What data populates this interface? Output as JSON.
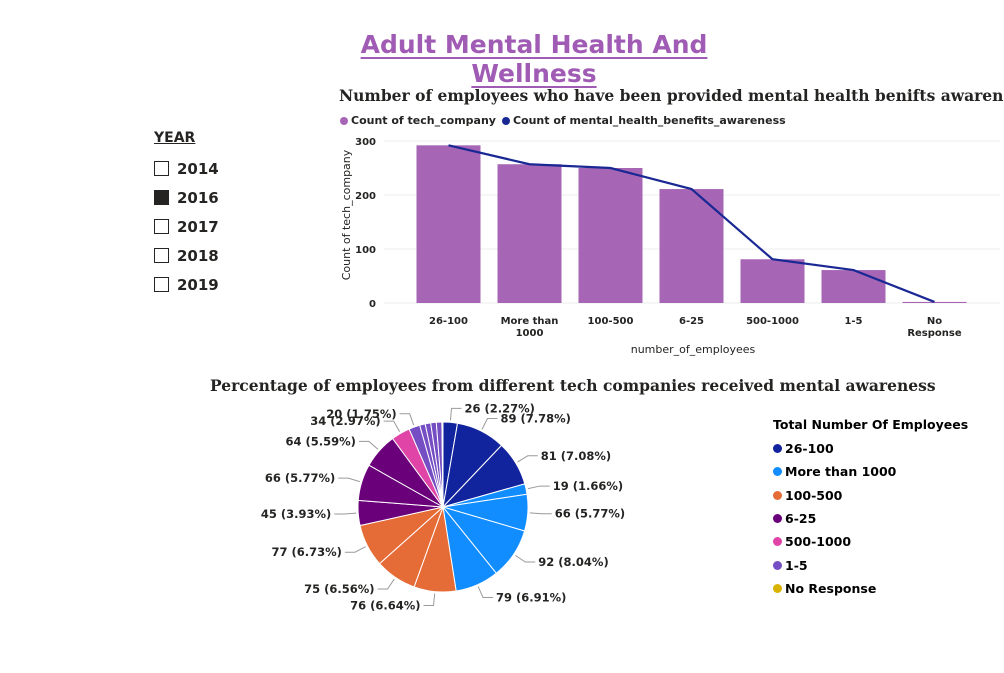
{
  "page_title": "Adult Mental Health And Wellness",
  "year_slicer": {
    "header": "YEAR",
    "items": [
      {
        "label": "2014",
        "checked": false
      },
      {
        "label": "2016",
        "checked": true
      },
      {
        "label": "2017",
        "checked": false
      },
      {
        "label": "2018",
        "checked": false
      },
      {
        "label": "2019",
        "checked": false
      }
    ]
  },
  "chart_data": [
    {
      "type": "bar",
      "title": "Number of employees who have been provided mental health benifts awareness",
      "xlabel": "number_of_employees",
      "ylabel": "Count of tech_company",
      "ylim": [
        0,
        300
      ],
      "yticks": [
        0,
        100,
        200,
        300
      ],
      "grid": true,
      "legend_position": "top-left",
      "categories": [
        "26-100",
        "More than 1000",
        "100-500",
        "6-25",
        "500-1000",
        "1-5",
        "No Response"
      ],
      "series": [
        {
          "name": "Count of tech_company",
          "kind": "bar",
          "color": "#a666b5",
          "values": [
            292,
            257,
            250,
            211,
            81,
            61,
            2
          ]
        },
        {
          "name": "Count of mental_health_benefits_awareness",
          "kind": "line",
          "color": "#1a2894",
          "values": [
            292,
            257,
            250,
            211,
            81,
            61,
            2
          ]
        }
      ]
    },
    {
      "type": "pie",
      "title": "Percentage of employees from different tech companies received mental awareness",
      "legend_title": "Total Number Of Employees",
      "legend": [
        {
          "label": "26-100",
          "color": "#12239e"
        },
        {
          "label": "More than 1000",
          "color": "#118dff"
        },
        {
          "label": "100-500",
          "color": "#e66c37"
        },
        {
          "label": "6-25",
          "color": "#6b007b"
        },
        {
          "label": "500-1000",
          "color": "#e044a7"
        },
        {
          "label": "1-5",
          "color": "#744ec2"
        },
        {
          "label": "No Response",
          "color": "#d9b300"
        }
      ],
      "slices": [
        {
          "group": "26-100",
          "value": 26,
          "label": "26 (2.27%)"
        },
        {
          "group": "26-100",
          "value": 89,
          "label": "89 (7.78%)"
        },
        {
          "group": "26-100",
          "value": 81,
          "label": "81 (7.08%)"
        },
        {
          "group": "More than 1000",
          "value": 19,
          "label": "19 (1.66%)"
        },
        {
          "group": "More than 1000",
          "value": 66,
          "label": "66 (5.77%)"
        },
        {
          "group": "More than 1000",
          "value": 92,
          "label": "92 (8.04%)"
        },
        {
          "group": "More than 1000",
          "value": 79,
          "label": "79 (6.91%)"
        },
        {
          "group": "100-500",
          "value": 76,
          "label": "76 (6.64%)"
        },
        {
          "group": "100-500",
          "value": 75,
          "label": "75 (6.56%)"
        },
        {
          "group": "100-500",
          "value": 77,
          "label": "77 (6.73%)"
        },
        {
          "group": "6-25",
          "value": 45,
          "label": "45 (3.93%)"
        },
        {
          "group": "6-25",
          "value": 66,
          "label": "66 (5.77%)"
        },
        {
          "group": "6-25",
          "value": 64,
          "label": "64 (5.59%)"
        },
        {
          "group": "500-1000",
          "value": 34,
          "label": "34 (2.97%)"
        },
        {
          "group": "1-5",
          "value": 20,
          "label": "20 (1.75%)"
        },
        {
          "group": "1-5",
          "value": 10,
          "label": ""
        },
        {
          "group": "1-5",
          "value": 10,
          "label": ""
        },
        {
          "group": "1-5",
          "value": 10,
          "label": ""
        },
        {
          "group": "1-5",
          "value": 10,
          "label": ""
        },
        {
          "group": "No Response",
          "value": 2,
          "label": ""
        }
      ]
    }
  ]
}
